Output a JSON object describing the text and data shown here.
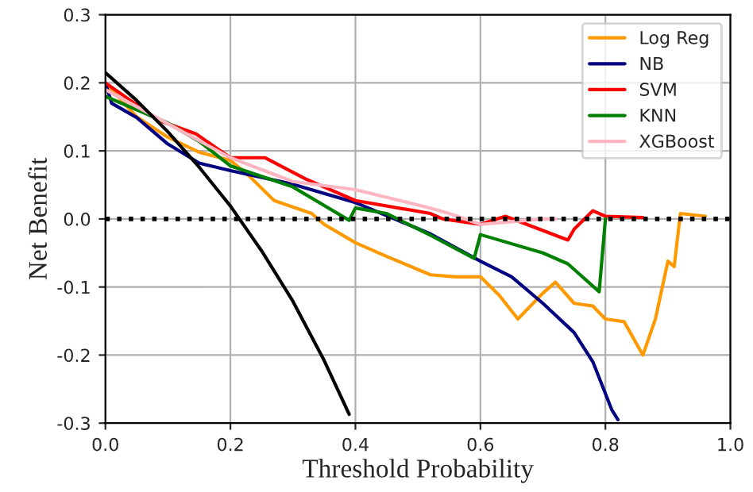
{
  "chart_data": {
    "type": "line",
    "xlabel": "Threshold Probability",
    "ylabel": "Net Benefit",
    "xlim": [
      0.0,
      1.0
    ],
    "ylim": [
      -0.3,
      0.3
    ],
    "xticks": [
      {
        "value": 0,
        "label": "0.0"
      },
      0.2,
      0.4,
      0.6,
      0.8,
      {
        "value": 1,
        "label": "1.0"
      }
    ],
    "yticks": [
      -0.3,
      -0.2,
      -0.1,
      {
        "value": 0,
        "label": "0.0"
      },
      0.1,
      0.2,
      0.3
    ],
    "grid": true,
    "legend": "top right",
    "line_style": "solid",
    "marker": "none",
    "ref_lines": [
      {
        "axis": "y",
        "value": 0,
        "color": "#000000",
        "line_style": "dotted"
      }
    ],
    "series": [
      {
        "name": "Log Reg",
        "color": "#ff9900",
        "x": [
          0,
          0.05,
          0.1,
          0.15,
          0.2,
          0.23,
          0.27,
          0.33,
          0.35,
          0.4,
          0.45,
          0.52,
          0.56,
          0.6,
          0.63,
          0.66,
          0.7,
          0.72,
          0.75,
          0.78,
          0.8,
          0.83,
          0.86,
          0.88,
          0.9,
          0.91,
          0.92,
          0.96
        ],
        "values": [
          0.2,
          0.15,
          0.12,
          0.098,
          0.086,
          0.063,
          0.027,
          0.008,
          -0.008,
          -0.035,
          -0.055,
          -0.082,
          -0.085,
          -0.085,
          -0.112,
          -0.147,
          -0.109,
          -0.093,
          -0.124,
          -0.128,
          -0.147,
          -0.151,
          -0.2,
          -0.147,
          -0.062,
          -0.07,
          0.008,
          0.004
        ]
      },
      {
        "name": "NB",
        "color": "#000080",
        "x": [
          0,
          0.01,
          0.05,
          0.1,
          0.15,
          0.2,
          0.3,
          0.4,
          0.52,
          0.6,
          0.65,
          0.7,
          0.75,
          0.78,
          0.81,
          0.82
        ],
        "values": [
          0.2,
          0.17,
          0.149,
          0.11,
          0.082,
          0.071,
          0.051,
          0.024,
          -0.022,
          -0.062,
          -0.085,
          -0.124,
          -0.167,
          -0.21,
          -0.28,
          -0.295
        ]
      },
      {
        "name": "SVM",
        "color": "#ff0000",
        "x": [
          0,
          0.085,
          0.145,
          0.2,
          0.255,
          0.32,
          0.4,
          0.52,
          0.54,
          0.6,
          0.64,
          0.74,
          0.75,
          0.78,
          0.8,
          0.86
        ],
        "values": [
          0.2,
          0.145,
          0.125,
          0.09,
          0.09,
          0.059,
          0.027,
          0.008,
          0,
          -0.008,
          0.004,
          -0.031,
          -0.015,
          0.012,
          0.004,
          0.002
        ]
      },
      {
        "name": "KNN",
        "color": "#008000",
        "x": [
          0,
          0.1,
          0.15,
          0.2,
          0.3,
          0.39,
          0.4,
          0.45,
          0.52,
          0.59,
          0.6,
          0.7,
          0.74,
          0.79,
          0.8
        ],
        "values": [
          0.18,
          0.141,
          0.114,
          0.078,
          0.047,
          -0.002,
          0.016,
          0.008,
          -0.024,
          -0.058,
          -0.023,
          -0.05,
          -0.066,
          -0.107,
          0
        ]
      },
      {
        "name": "XGBoost",
        "color": "#ffb6c1",
        "x": [
          0,
          0.1,
          0.2,
          0.3,
          0.4,
          0.52,
          0.55,
          0.6,
          0.65,
          0.7,
          0.72
        ],
        "values": [
          0.19,
          0.14,
          0.09,
          0.055,
          0.043,
          0.016,
          0.008,
          -0.008,
          -0.004,
          0,
          0
        ]
      },
      {
        "color": "#000000",
        "x": [
          0,
          0.05,
          0.1,
          0.15,
          0.2,
          0.25,
          0.3,
          0.35,
          0.39
        ],
        "values": [
          0.215,
          0.174,
          0.128,
          0.076,
          0.019,
          -0.047,
          -0.121,
          -0.208,
          -0.287
        ]
      }
    ]
  }
}
